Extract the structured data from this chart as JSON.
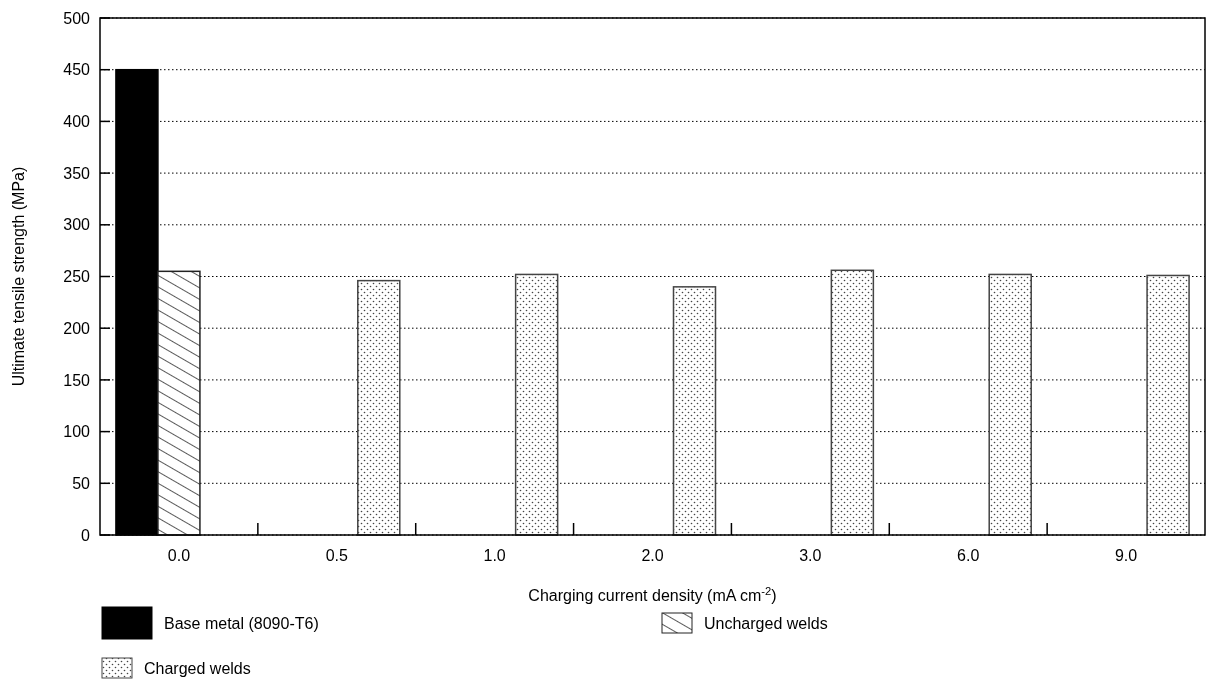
{
  "chart_data": {
    "type": "bar",
    "xlabel": "Charging current density (mA cm$^{-2}$)",
    "ylabel": "Ultimate tensile strength (MPa)",
    "categories": [
      "0.0",
      "0.5",
      "1.0",
      "2.0",
      "3.0",
      "6.0",
      "9.0"
    ],
    "series": [
      {
        "name": "Base metal (8090-T6)",
        "color": "#000000",
        "values": [
          450,
          null,
          null,
          null,
          null,
          null,
          null
        ]
      },
      {
        "name": "Uncharged welds",
        "color": "#222222",
        "values": [
          255,
          null,
          null,
          null,
          null,
          null,
          null
        ]
      },
      {
        "name": "Charged welds",
        "color": "#444444",
        "values": [
          null,
          246,
          252,
          240,
          256,
          252,
          251
        ]
      }
    ],
    "ylim": [
      0,
      500
    ],
    "yticks": [
      0,
      50,
      100,
      150,
      200,
      250,
      300,
      350,
      400,
      450,
      500
    ],
    "grid": "y",
    "legend": "bottom"
  }
}
